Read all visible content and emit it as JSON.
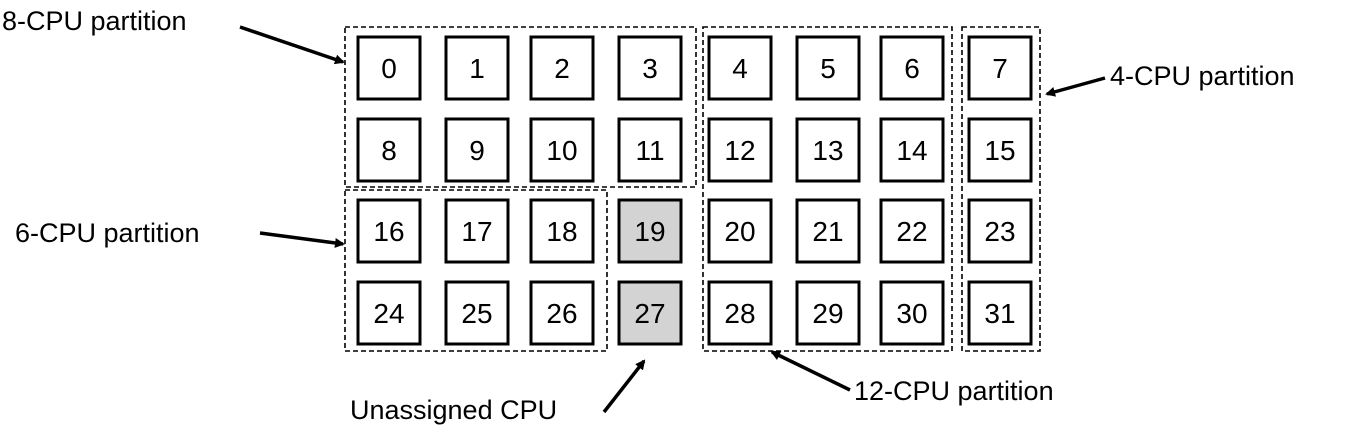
{
  "cpus": [
    {
      "id": "0"
    },
    {
      "id": "1"
    },
    {
      "id": "2"
    },
    {
      "id": "3"
    },
    {
      "id": "4"
    },
    {
      "id": "5"
    },
    {
      "id": "6"
    },
    {
      "id": "7"
    },
    {
      "id": "8"
    },
    {
      "id": "9"
    },
    {
      "id": "10"
    },
    {
      "id": "11"
    },
    {
      "id": "12"
    },
    {
      "id": "13"
    },
    {
      "id": "14"
    },
    {
      "id": "15"
    },
    {
      "id": "16"
    },
    {
      "id": "17"
    },
    {
      "id": "18"
    },
    {
      "id": "19",
      "unassigned": true
    },
    {
      "id": "20"
    },
    {
      "id": "21"
    },
    {
      "id": "22"
    },
    {
      "id": "23"
    },
    {
      "id": "24"
    },
    {
      "id": "25"
    },
    {
      "id": "26"
    },
    {
      "id": "27",
      "unassigned": true
    },
    {
      "id": "28"
    },
    {
      "id": "29"
    },
    {
      "id": "30"
    },
    {
      "id": "31"
    }
  ],
  "callouts": {
    "partition_8": "8-CPU partition",
    "partition_4": "4-CPU partition",
    "partition_6": "6-CPU partition",
    "partition_12": "12-CPU partition",
    "unassigned": "Unassigned CPU"
  },
  "colors": {
    "unassigned_fill": "#d3d3d3",
    "stroke": "#000000"
  }
}
